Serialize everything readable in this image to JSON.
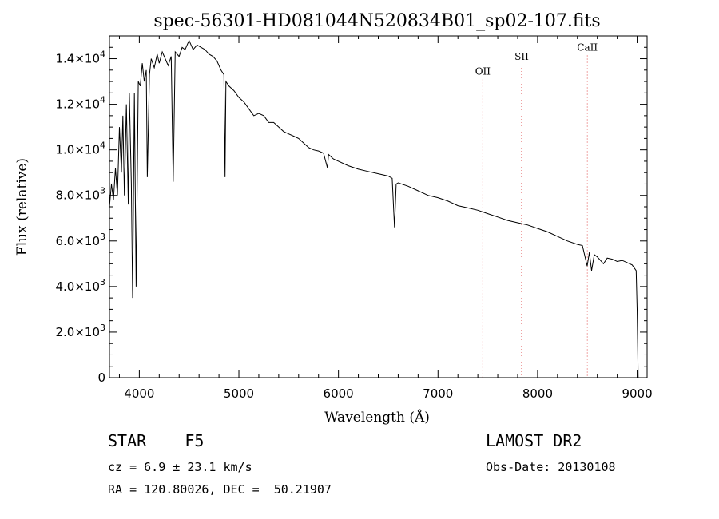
{
  "chart_data": {
    "type": "line",
    "title": "spec-56301-HD081044N520834B01_sp02-107.fits",
    "xlabel": "Wavelength (Å)",
    "ylabel": "Flux (relative)",
    "xlim": [
      3700,
      9100
    ],
    "ylim": [
      0,
      15000
    ],
    "x_ticks": [
      {
        "value": 4000,
        "label": "4000"
      },
      {
        "value": 5000,
        "label": "5000"
      },
      {
        "value": 6000,
        "label": "6000"
      },
      {
        "value": 7000,
        "label": "7000"
      },
      {
        "value": 8000,
        "label": "8000"
      },
      {
        "value": 9000,
        "label": "9000"
      }
    ],
    "y_ticks": [
      {
        "value": 0,
        "mant": "0",
        "exp": ""
      },
      {
        "value": 2000,
        "mant": "2.0×10",
        "exp": "3"
      },
      {
        "value": 4000,
        "mant": "4.0×10",
        "exp": "3"
      },
      {
        "value": 6000,
        "mant": "6.0×10",
        "exp": "3"
      },
      {
        "value": 8000,
        "mant": "8.0×10",
        "exp": "3"
      },
      {
        "value": 10000,
        "mant": "1.0×10",
        "exp": "4"
      },
      {
        "value": 12000,
        "mant": "1.2×10",
        "exp": "4"
      },
      {
        "value": 14000,
        "mant": "1.4×10",
        "exp": "4"
      }
    ],
    "lines": [
      {
        "label": "OII",
        "x": 7450,
        "label_y": 13300
      },
      {
        "label": "SII",
        "x": 7840,
        "label_y": 13950
      },
      {
        "label": "CaII",
        "x": 8500,
        "label_y": 14350
      }
    ],
    "grid": false,
    "series": [
      {
        "x": [
          3700,
          3720,
          3740,
          3760,
          3780,
          3800,
          3820,
          3835,
          3850,
          3870,
          3889,
          3900,
          3920,
          3933,
          3950,
          3968,
          3990,
          4010,
          4030,
          4050,
          4070,
          4080,
          4102,
          4120,
          4150,
          4180,
          4200,
          4230,
          4260,
          4290,
          4320,
          4340,
          4360,
          4400,
          4430,
          4460,
          4500,
          4540,
          4580,
          4620,
          4660,
          4700,
          4740,
          4780,
          4820,
          4850,
          4861,
          4870,
          4900,
          4950,
          5000,
          5050,
          5100,
          5150,
          5200,
          5250,
          5300,
          5350,
          5400,
          5450,
          5500,
          5550,
          5600,
          5650,
          5700,
          5750,
          5800,
          5850,
          5890,
          5900,
          5950,
          6000,
          6100,
          6200,
          6300,
          6400,
          6500,
          6540,
          6563,
          6580,
          6600,
          6700,
          6800,
          6900,
          7000,
          7100,
          7200,
          7300,
          7400,
          7500,
          7600,
          7700,
          7800,
          7900,
          8000,
          8100,
          8200,
          8300,
          8400,
          8450,
          8498,
          8520,
          8542,
          8570,
          8600,
          8662,
          8700,
          8750,
          8800,
          8850,
          8900,
          8950,
          8990,
          9000,
          9010
        ],
        "y": [
          7500,
          8500,
          7800,
          9200,
          8000,
          11000,
          9000,
          11500,
          8000,
          12000,
          7600,
          12500,
          8500,
          3500,
          12500,
          4000,
          13000,
          12800,
          13800,
          13000,
          13500,
          8800,
          13300,
          14000,
          13600,
          14200,
          13800,
          14300,
          14000,
          13700,
          14100,
          8600,
          14300,
          14100,
          14500,
          14400,
          14800,
          14400,
          14600,
          14500,
          14400,
          14200,
          14100,
          13900,
          13500,
          13300,
          8800,
          13000,
          12800,
          12600,
          12300,
          12100,
          11800,
          11500,
          11600,
          11500,
          11200,
          11200,
          11000,
          10800,
          10700,
          10600,
          10500,
          10300,
          10100,
          10000,
          9950,
          9850,
          9200,
          9800,
          9600,
          9500,
          9300,
          9150,
          9050,
          8950,
          8850,
          8750,
          6600,
          8500,
          8550,
          8400,
          8200,
          8000,
          7900,
          7750,
          7550,
          7450,
          7350,
          7200,
          7050,
          6900,
          6800,
          6700,
          6550,
          6400,
          6200,
          6000,
          5850,
          5800,
          4900,
          5500,
          4700,
          5400,
          5300,
          5000,
          5250,
          5200,
          5100,
          5150,
          5050,
          4950,
          4700,
          3000,
          0
        ]
      }
    ]
  },
  "info": {
    "object_line": "STAR    F5",
    "cz_line": "cz = 6.9 ± 23.1 km/s",
    "radec_line": "RA = 120.80026, DEC =  50.21907",
    "survey": "LAMOST DR2",
    "obs_date": "Obs-Date: 20130108"
  }
}
